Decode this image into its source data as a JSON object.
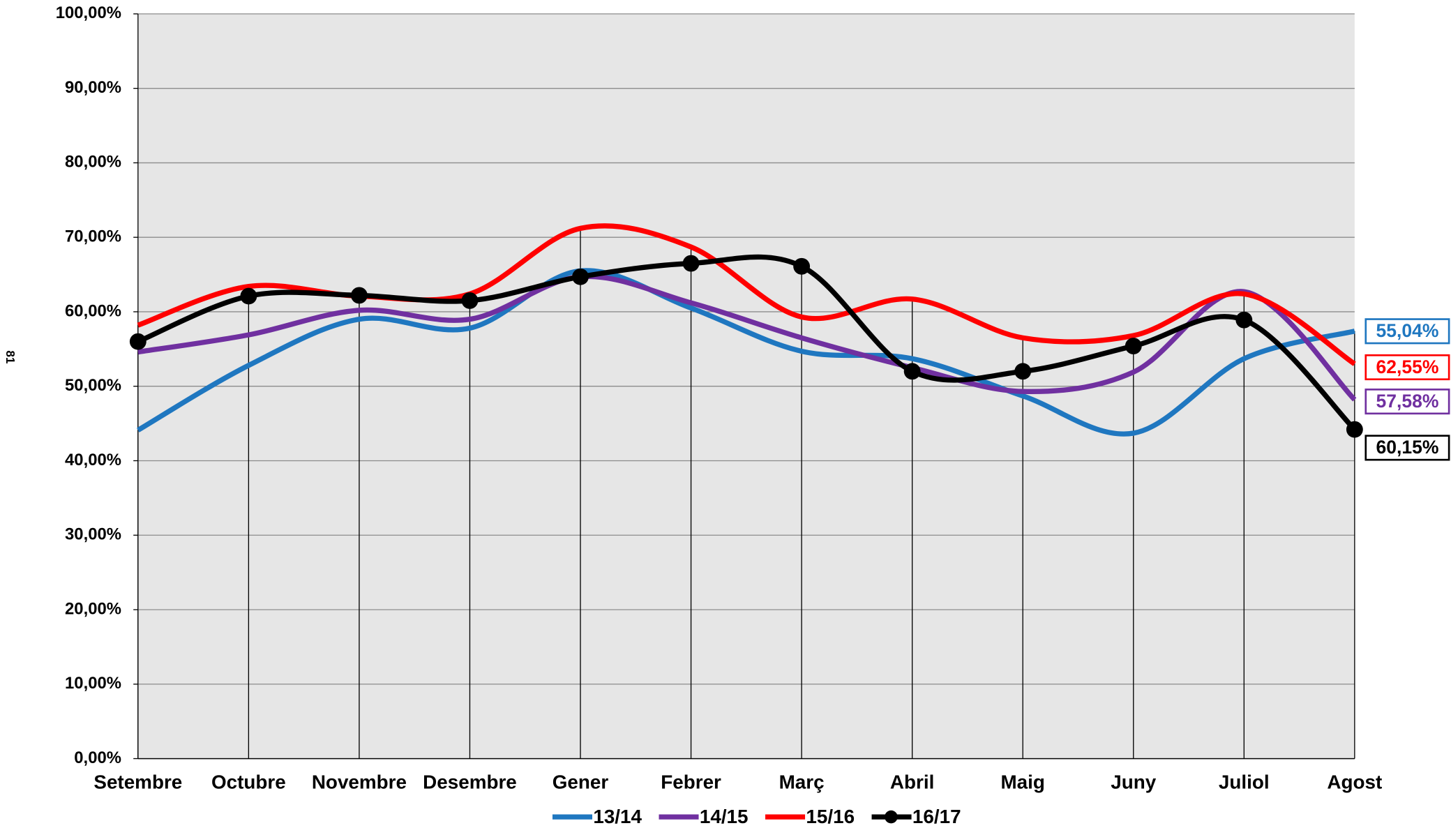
{
  "page_number": "81",
  "chart_data": {
    "type": "line",
    "smooth": true,
    "grid": true,
    "legend": "bottom",
    "categories": [
      "Setembre",
      "Octubre",
      "Novembre",
      "Desembre",
      "Gener",
      "Febrer",
      "Març",
      "Abril",
      "Maig",
      "Juny",
      "Juliol",
      "Agost"
    ],
    "ylim": [
      0,
      100
    ],
    "yticks": [
      {
        "value": 0,
        "label": "0,00%"
      },
      {
        "value": 10,
        "label": "10,00%"
      },
      {
        "value": 20,
        "label": "20,00%"
      },
      {
        "value": 30,
        "label": "30,00%"
      },
      {
        "value": 40,
        "label": "40,00%"
      },
      {
        "value": 50,
        "label": "50,00%"
      },
      {
        "value": 60,
        "label": "60,00%"
      },
      {
        "value": 70,
        "label": "70,00%"
      },
      {
        "value": 80,
        "label": "80,00%"
      },
      {
        "value": 90,
        "label": "90,00%"
      },
      {
        "value": 100,
        "label": "100,00%"
      }
    ],
    "series": [
      {
        "name": "13/14",
        "color": "#1f77c0",
        "markers": false,
        "values": [
          44.1,
          52.8,
          59,
          57.8,
          65.5,
          60.5,
          54.7,
          53.7,
          48.7,
          43.7,
          53.7,
          57.4
        ]
      },
      {
        "name": "14/15",
        "color": "#7030a0",
        "markers": false,
        "values": [
          54.6,
          56.9,
          60.2,
          59,
          64.7,
          61.2,
          56.5,
          52.5,
          49.3,
          51.9,
          62.7,
          48.2
        ]
      },
      {
        "name": "15/16",
        "color": "#ff0000",
        "markers": false,
        "values": [
          58.2,
          63.4,
          62.1,
          62.4,
          71.2,
          68.7,
          59.3,
          61.7,
          56.5,
          56.8,
          62.4,
          53
        ]
      },
      {
        "name": "16/17",
        "color": "#000000",
        "markers": true,
        "values": [
          56,
          62.1,
          62.2,
          61.5,
          64.7,
          66.5,
          66.1,
          52,
          52,
          55.4,
          58.9,
          44.2
        ]
      }
    ],
    "annotations": [
      {
        "text": "55,04%",
        "color": "#1f77c0"
      },
      {
        "text": "62,55%",
        "color": "#ff0000"
      },
      {
        "text": "57,58%",
        "color": "#7030a0"
      },
      {
        "text": "60,15%",
        "color": "#000000"
      }
    ]
  }
}
